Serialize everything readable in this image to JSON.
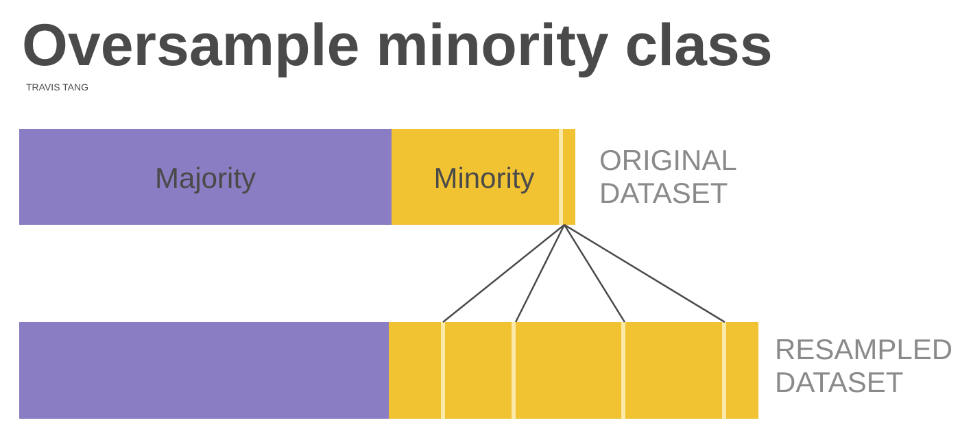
{
  "title": "Oversample minority class",
  "author": "TRAVIS TANG",
  "original": {
    "majority_label": "Majority",
    "minority_label": "Minority",
    "side_label_line1": "ORIGINAL",
    "side_label_line2": "DATASET"
  },
  "resampled": {
    "side_label_line1": "RESAMPLED",
    "side_label_line2": "DATASET"
  },
  "colors": {
    "majority": "#8b7dc3",
    "minority": "#f1c232",
    "stripe": "#fbe9a8",
    "text": "#4a4a4a",
    "side_text": "#8a8a8a",
    "connector": "#4a4a4a"
  }
}
